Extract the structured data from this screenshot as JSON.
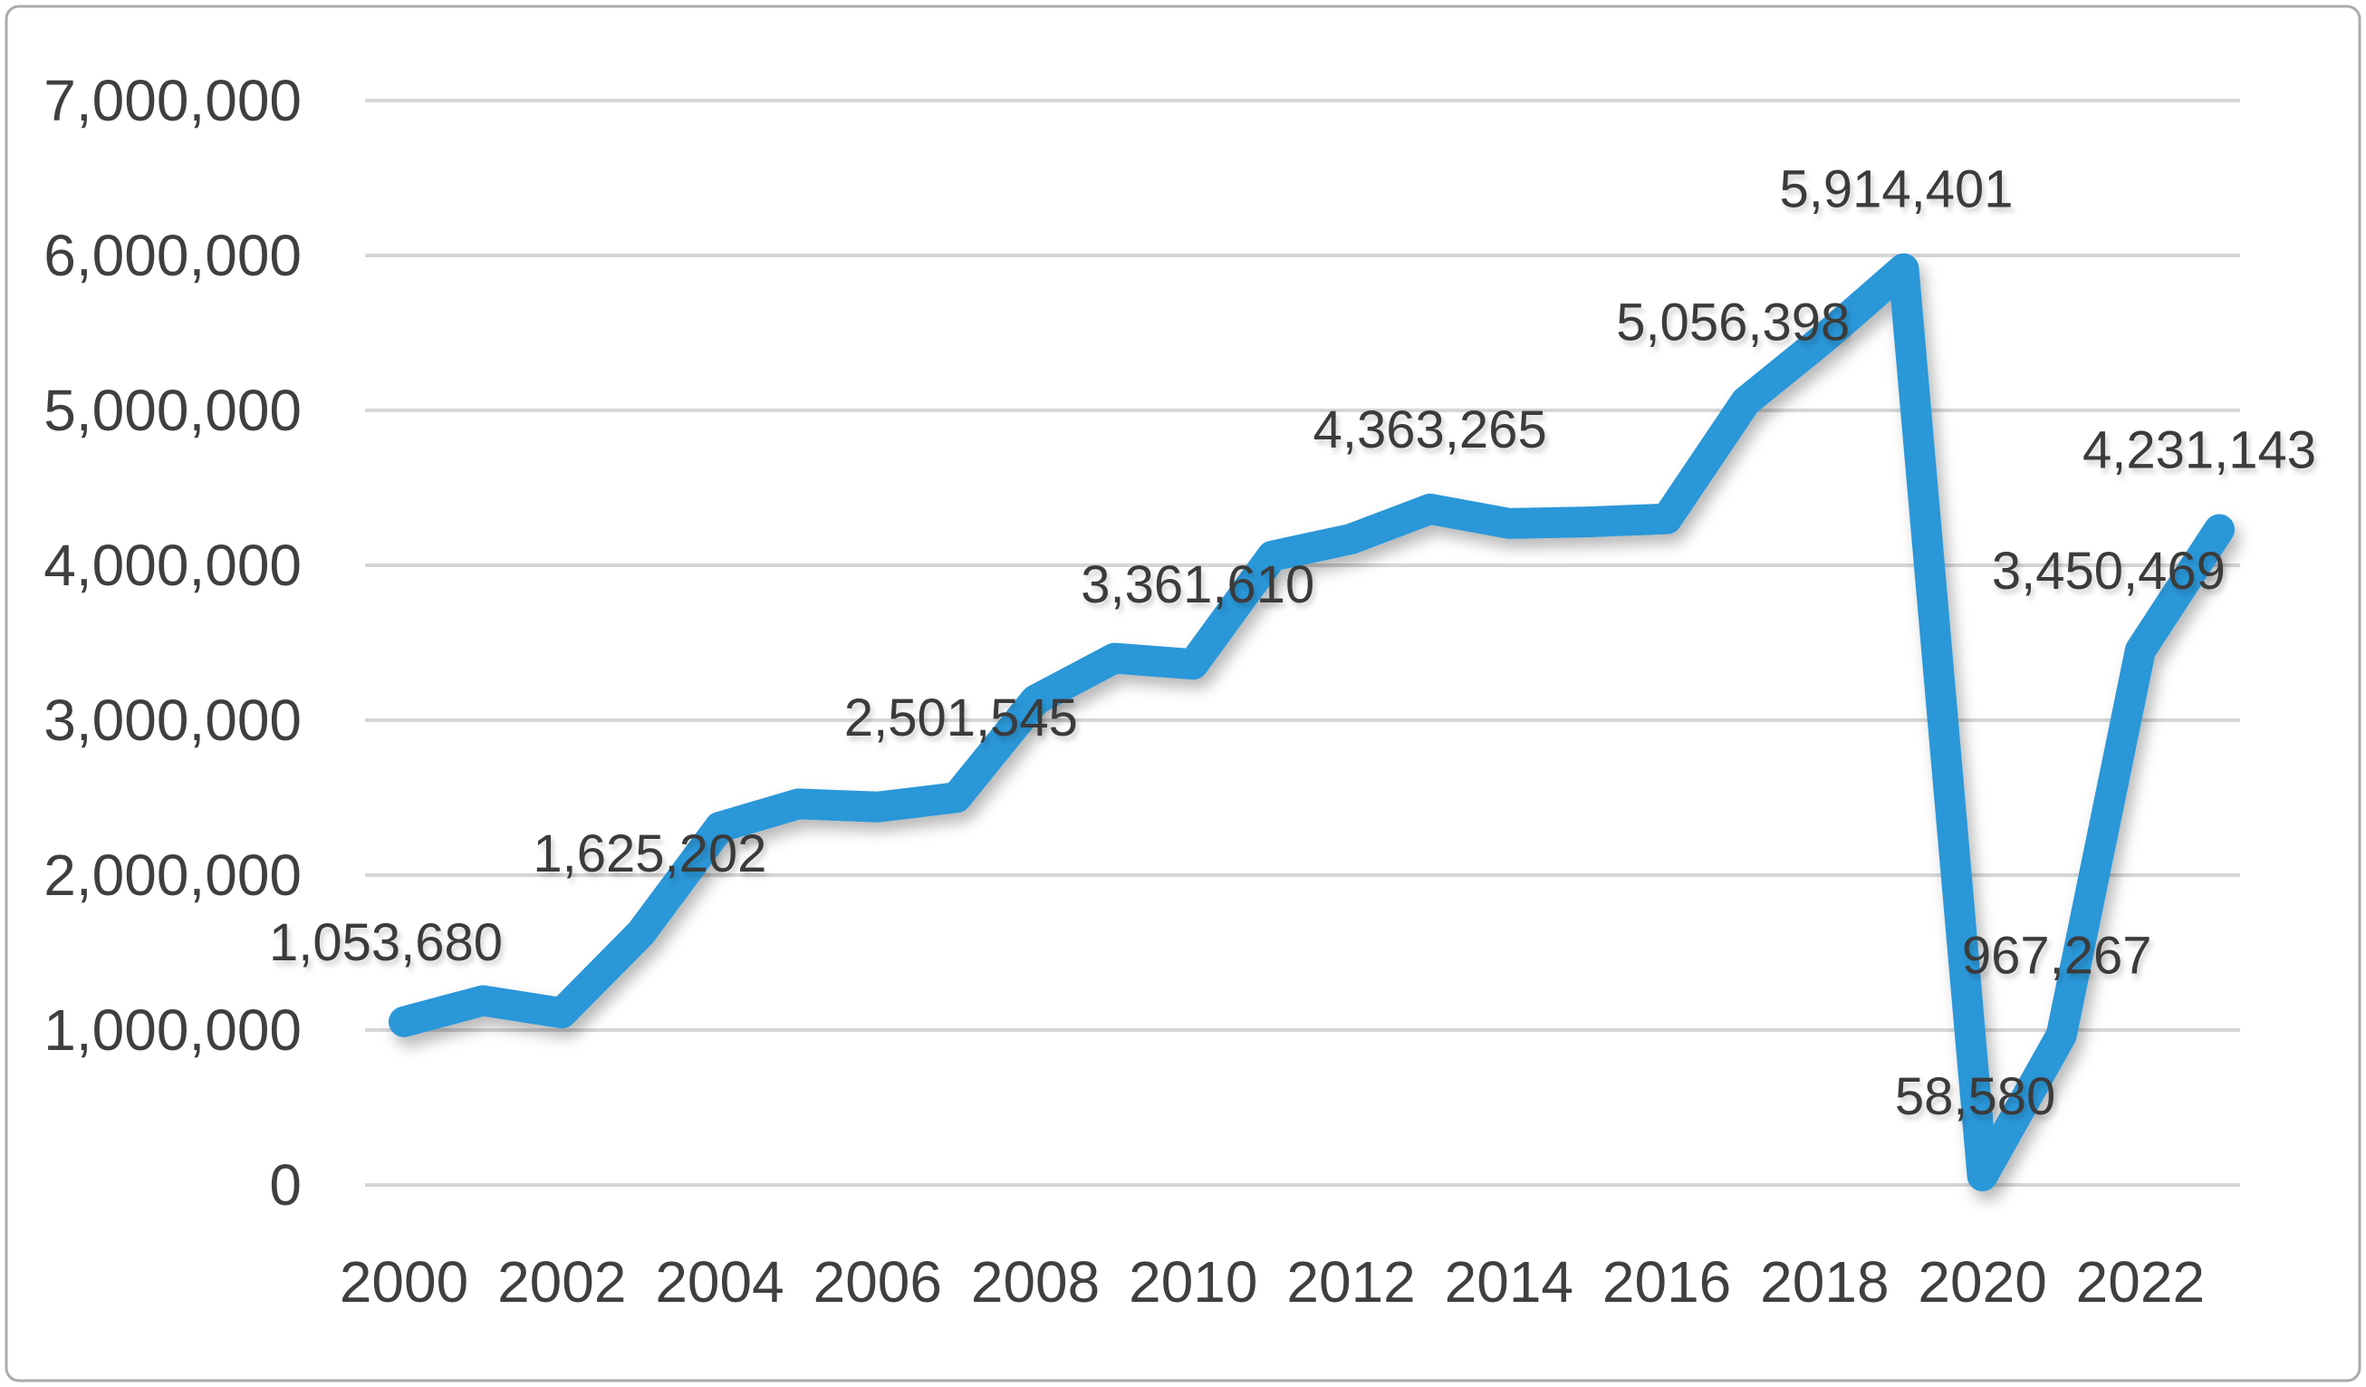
{
  "figure": {
    "background_color": "#FFFFFF",
    "border_color": "#ABABAB"
  },
  "chart_data": {
    "type": "line",
    "title": "",
    "xlabel": "",
    "ylabel": "",
    "x": [
      2000,
      2001,
      2002,
      2003,
      2004,
      2005,
      2006,
      2007,
      2008,
      2009,
      2010,
      2011,
      2012,
      2013,
      2014,
      2015,
      2016,
      2017,
      2018,
      2019,
      2020,
      2021,
      2022,
      2023
    ],
    "values": [
      1053680,
      1190000,
      1110000,
      1625202,
      2310000,
      2460000,
      2440000,
      2501545,
      3130000,
      3400000,
      3361610,
      4060000,
      4170000,
      4363265,
      4270000,
      4280000,
      4300000,
      5056398,
      5470000,
      5914401,
      58580,
      967267,
      3450469,
      4231143
    ],
    "labeled_points": [
      {
        "year": 2000,
        "label": "1,053,680",
        "dx": -20
      },
      {
        "year": 2003,
        "label": "1,625,202",
        "dx": 10
      },
      {
        "year": 2007,
        "label": "2,501,545",
        "dx": 5
      },
      {
        "year": 2010,
        "label": "3,361,610",
        "dx": 5
      },
      {
        "year": 2013,
        "label": "4,363,265",
        "dx": 0
      },
      {
        "year": 2017,
        "label": "5,056,398",
        "dx": -14
      },
      {
        "year": 2019,
        "label": "5,914,401",
        "dx": -8
      },
      {
        "year": 2020,
        "label": "58,580",
        "dx": -8
      },
      {
        "year": 2021,
        "label": "967,267",
        "dx": -5
      },
      {
        "year": 2022,
        "label": "3,450,469",
        "dx": -35
      },
      {
        "year": 2023,
        "label": "4,231,143",
        "dx": -22
      }
    ],
    "x_ticks": [
      "2000",
      "2002",
      "2004",
      "2006",
      "2008",
      "2010",
      "2012",
      "2014",
      "2016",
      "2018",
      "2020",
      "2022"
    ],
    "y_ticks": [
      "0",
      "1,000,000",
      "2,000,000",
      "3,000,000",
      "4,000,000",
      "5,000,000",
      "6,000,000",
      "7,000,000"
    ],
    "y_range": [
      0,
      7000000
    ],
    "y_tick_step": 1000000,
    "grid": true,
    "legend_position": "none",
    "line_color": "#2B97D8",
    "gridline_color": "#D6D6D6",
    "tick_label_color": "#3F3F3F",
    "data_label_color": "#3A3A3A"
  }
}
